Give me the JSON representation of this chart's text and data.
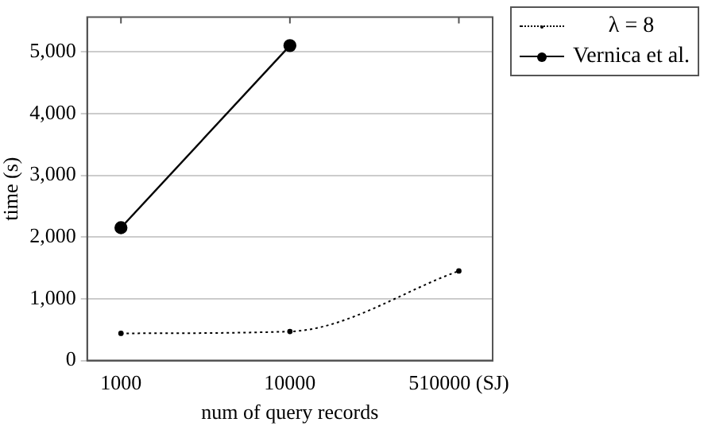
{
  "chart_data": {
    "type": "line",
    "xlabel": "num of query records",
    "ylabel": "time (s)",
    "categories": [
      "1000",
      "10000",
      "510000 (SJ)"
    ],
    "series": [
      {
        "name": "λ = 8",
        "color": "#000000",
        "values": [
          440,
          470,
          1450
        ],
        "line_style": "dotted",
        "marker": "circle"
      },
      {
        "name": "Vernica et al.",
        "color": "#000000",
        "values": [
          2150,
          5100,
          null
        ],
        "line_style": "solid",
        "marker": "circle"
      }
    ],
    "ylim": [
      0,
      5560
    ],
    "yticks": [
      0,
      {
        "value": 1000,
        "label": "1,000"
      },
      {
        "value": 2000,
        "label": "2,000"
      },
      {
        "value": 3000,
        "label": "3,000"
      },
      {
        "value": 4000,
        "label": "4,000"
      },
      {
        "value": 5000,
        "label": "5,000"
      }
    ],
    "grid": "y",
    "legend": "top right"
  }
}
